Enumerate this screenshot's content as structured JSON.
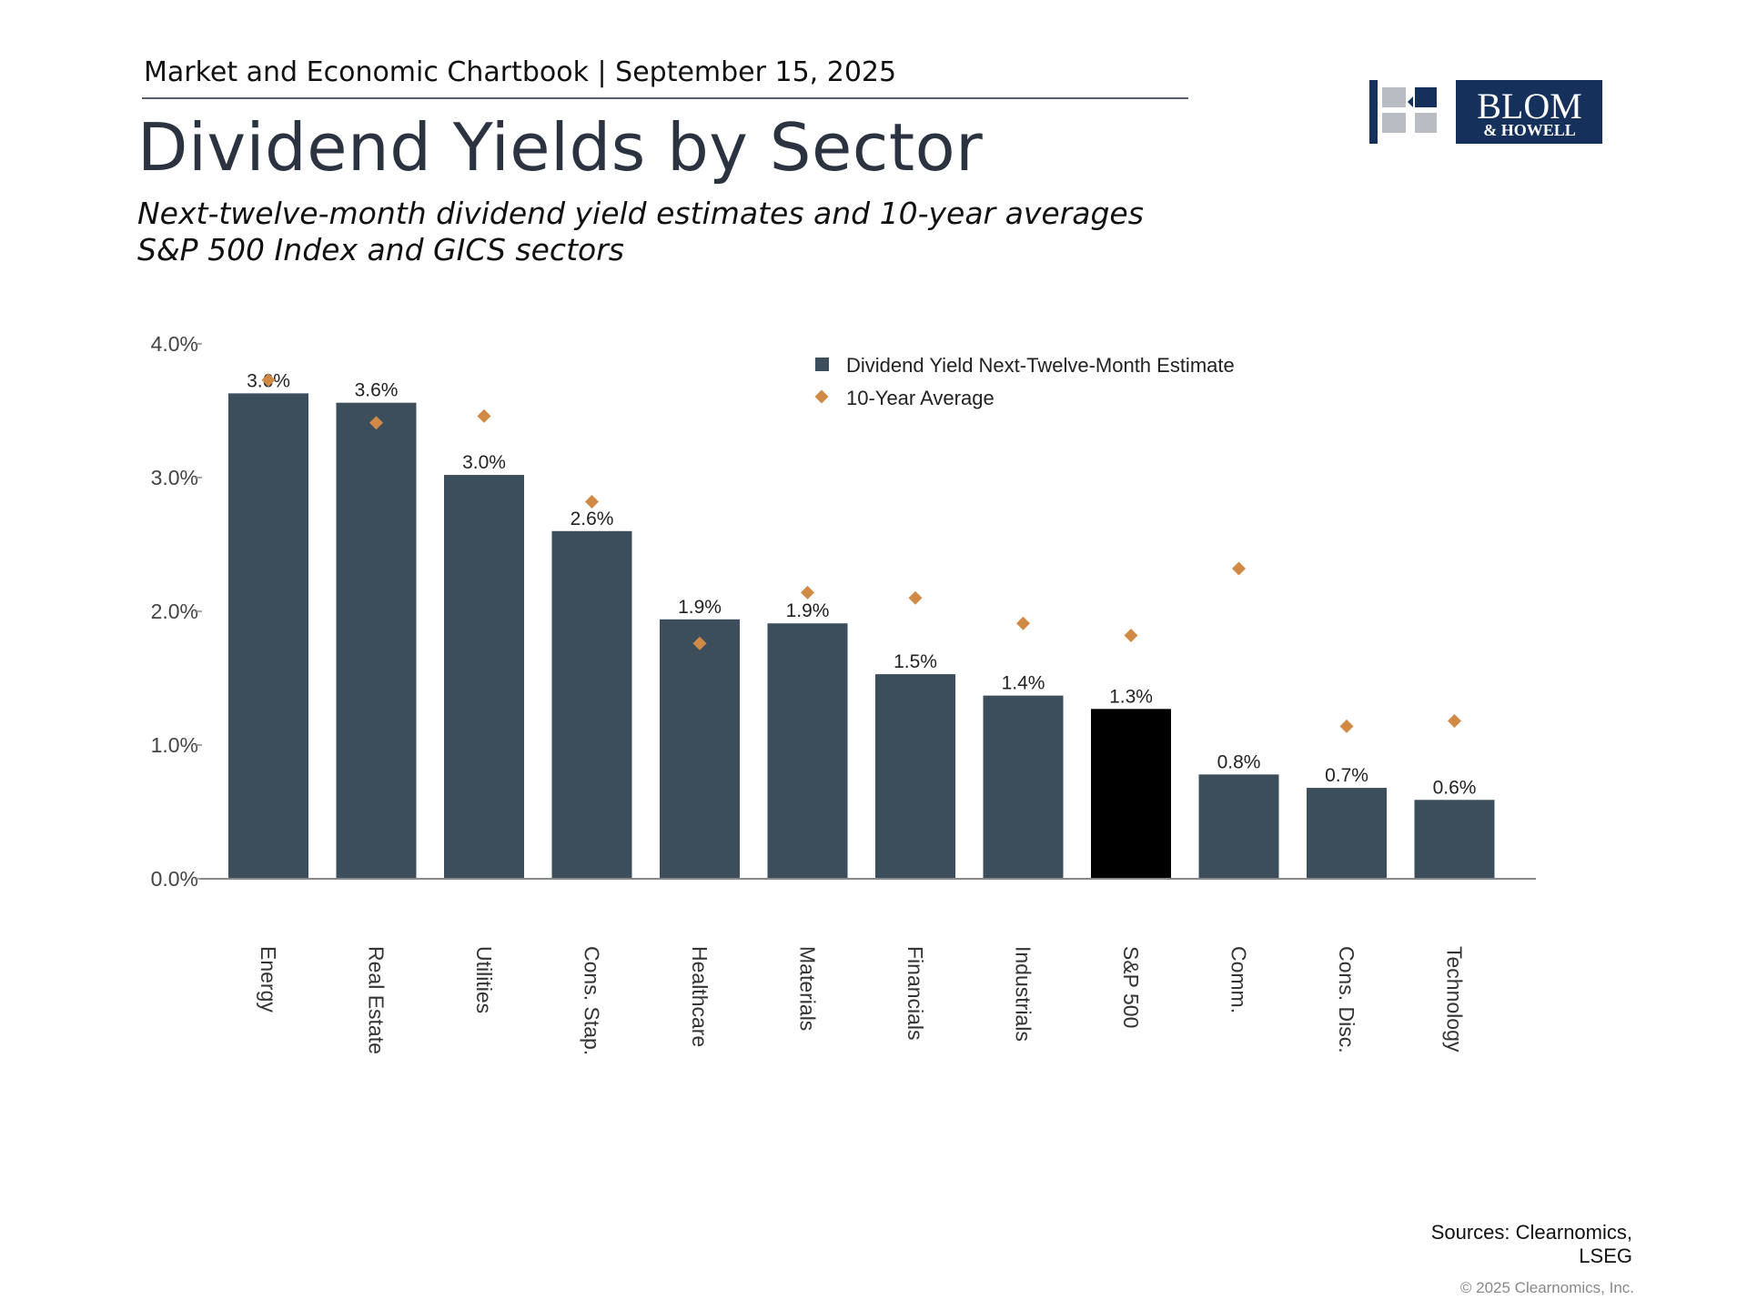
{
  "header": {
    "kicker": "Market and Economic Chartbook | September 15, 2025",
    "title": "Dividend Yields by Sector",
    "subtitle_line1": "Next-twelve-month dividend yield estimates and 10-year averages",
    "subtitle_line2": "S&P 500 Index and GICS sectors"
  },
  "logo": {
    "brand_line1": "BLOM",
    "brand_line2": "& HOWELL",
    "colors": {
      "navy": "#14305b",
      "gray": "#b9bcc2"
    }
  },
  "footer": {
    "sources_line1": "Sources: Clearnomics,",
    "sources_line2": "LSEG",
    "copyright": "© 2025 Clearnomics, Inc."
  },
  "chart_data": {
    "type": "bar",
    "categories": [
      "Energy",
      "Real Estate",
      "Utilities",
      "Cons. Stap.",
      "Healthcare",
      "Materials",
      "Financials",
      "Industrials",
      "S&P 500",
      "Comm.",
      "Cons. Disc.",
      "Technology"
    ],
    "series": [
      {
        "name": "Dividend Yield Next-Twelve-Month Estimate",
        "type": "bar",
        "values": [
          3.63,
          3.56,
          3.02,
          2.6,
          1.94,
          1.91,
          1.53,
          1.37,
          1.27,
          0.78,
          0.68,
          0.59
        ],
        "labels": [
          "3.6%",
          "3.6%",
          "3.0%",
          "2.6%",
          "1.9%",
          "1.9%",
          "1.5%",
          "1.4%",
          "1.3%",
          "0.8%",
          "0.7%",
          "0.6%"
        ],
        "color": "#3c4d5c",
        "highlight": {
          "category": "S&P 500",
          "color": "#000000"
        }
      },
      {
        "name": "10-Year Average",
        "type": "scatter",
        "marker": "diamond",
        "values": [
          3.73,
          3.41,
          3.46,
          2.82,
          1.76,
          2.14,
          2.1,
          1.91,
          1.82,
          2.32,
          1.14,
          1.18
        ],
        "color": "#d08a46"
      }
    ],
    "y_ticks": [
      "0.0%",
      "1.0%",
      "2.0%",
      "3.0%",
      "4.0%"
    ],
    "ylim": [
      0,
      4
    ],
    "legend_position": "top-right",
    "grid": false
  }
}
